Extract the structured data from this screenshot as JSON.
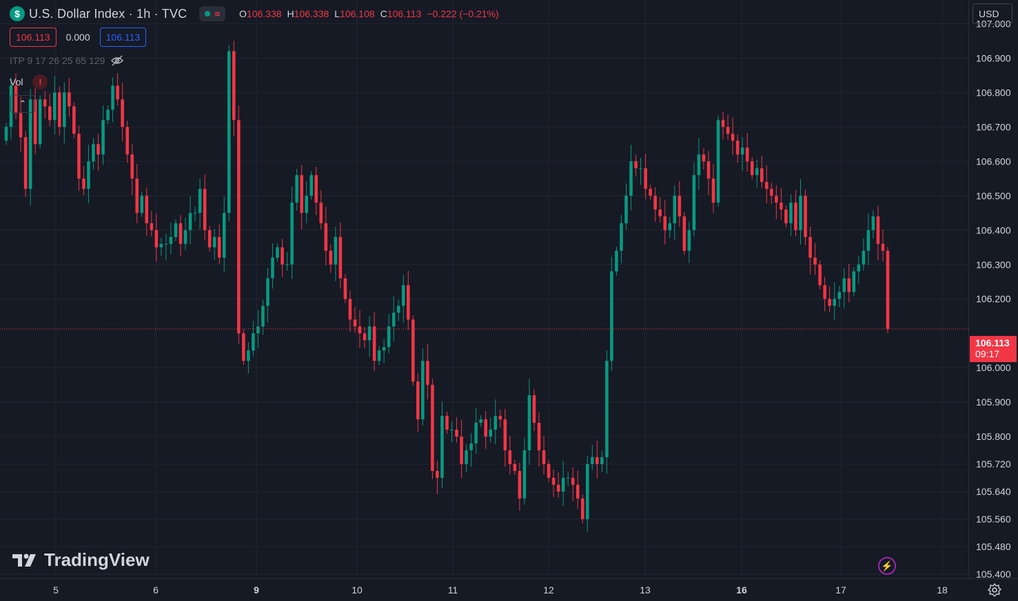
{
  "legend": {
    "symbol_icon": "dollar-icon",
    "symbol_glyph": "$",
    "title": "U.S. Dollar Index · 1h · TVC",
    "open_label": "O",
    "open": "106.338",
    "high_label": "H",
    "high": "106.338",
    "low_label": "L",
    "low": "106.108",
    "close_label": "C",
    "close": "106.113",
    "change": "−0.222 (−0.21%)"
  },
  "quote": {
    "bid": "106.113",
    "spread": "0.000",
    "ask": "106.113"
  },
  "indicators": {
    "label": "ITP 9 17 26 25 65 129",
    "visibility_icon": "eye-off-icon"
  },
  "volume": {
    "label": "Vol",
    "warning": "!"
  },
  "collapse_glyph": "⌃",
  "currency": {
    "label": "USD"
  },
  "last_price": {
    "value": "106.113",
    "countdown": "09:17"
  },
  "branding": {
    "name": "TradingView"
  },
  "colors": {
    "up": "#089981",
    "down": "#F23645",
    "background": "#161A25",
    "grid": "#232632",
    "axis_text": "#D1D4DC"
  },
  "chart_data": {
    "type": "candlestick",
    "title": "U.S. Dollar Index · 1h · TVC",
    "xlabel": "",
    "ylabel": "",
    "ylim": [
      105.39,
      107.06
    ],
    "y_ticks": [
      107.0,
      106.9,
      106.8,
      106.7,
      106.6,
      106.5,
      106.4,
      106.3,
      106.2,
      106.0,
      105.9,
      105.8,
      105.72,
      105.64,
      105.56,
      105.48,
      105.4
    ],
    "y_tick_labels": [
      "107.000",
      "106.900",
      "106.800",
      "106.700",
      "106.600",
      "106.500",
      "106.400",
      "106.300",
      "106.200",
      "106.000",
      "105.900",
      "105.800",
      "105.720",
      "105.640",
      "105.560",
      "105.480",
      "105.400"
    ],
    "x_tick_labels": [
      "5",
      "6",
      "9",
      "10",
      "11",
      "12",
      "13",
      "16",
      "17",
      "18"
    ],
    "x_tick_bold": [
      false,
      false,
      true,
      false,
      false,
      false,
      false,
      true,
      false,
      false
    ],
    "last_price": 106.113,
    "candle_closes": [
      106.7,
      106.82,
      106.74,
      106.67,
      106.52,
      106.78,
      106.65,
      106.78,
      106.76,
      106.72,
      106.8,
      106.7,
      106.8,
      106.76,
      106.68,
      106.55,
      106.52,
      106.6,
      106.65,
      106.62,
      106.72,
      106.75,
      106.82,
      106.78,
      106.7,
      106.62,
      106.55,
      106.45,
      106.5,
      106.42,
      106.4,
      106.35,
      106.36,
      106.36,
      106.38,
      106.42,
      106.36,
      106.4,
      106.45,
      106.45,
      106.52,
      106.4,
      106.35,
      106.38,
      106.32,
      106.45,
      106.92,
      106.72,
      106.1,
      106.02,
      106.05,
      106.1,
      106.12,
      106.18,
      106.26,
      106.32,
      106.35,
      106.3,
      106.3,
      106.48,
      106.56,
      106.45,
      106.5,
      106.56,
      106.48,
      106.42,
      106.34,
      106.3,
      106.38,
      106.26,
      106.2,
      106.14,
      106.12,
      106.1,
      106.08,
      106.12,
      106.02,
      106.05,
      106.06,
      106.12,
      106.16,
      106.18,
      106.24,
      106.14,
      105.96,
      105.85,
      106.02,
      105.95,
      105.7,
      105.68,
      105.86,
      105.82,
      105.82,
      105.8,
      105.72,
      105.76,
      105.78,
      105.84,
      105.85,
      105.8,
      105.82,
      105.86,
      105.85,
      105.76,
      105.72,
      105.7,
      105.62,
      105.76,
      105.92,
      105.84,
      105.76,
      105.72,
      105.68,
      105.66,
      105.64,
      105.68,
      105.68,
      105.66,
      105.62,
      105.56,
      105.72,
      105.74,
      105.72,
      105.74,
      106.02,
      106.28,
      106.34,
      106.42,
      106.5,
      106.6,
      106.58,
      106.58,
      106.52,
      106.5,
      106.46,
      106.44,
      106.4,
      106.42,
      106.5,
      106.44,
      106.34,
      106.4,
      106.56,
      106.62,
      106.6,
      106.55,
      106.48,
      106.72,
      106.7,
      106.68,
      106.66,
      106.62,
      106.64,
      106.6,
      106.56,
      106.58,
      106.54,
      106.52,
      106.5,
      106.48,
      106.46,
      106.42,
      106.48,
      106.4,
      106.5,
      106.38,
      106.32,
      106.3,
      106.24,
      106.2,
      106.18,
      106.2,
      106.22,
      106.26,
      106.22,
      106.28,
      106.3,
      106.34,
      106.4,
      106.44,
      106.36,
      106.34,
      106.113
    ]
  }
}
